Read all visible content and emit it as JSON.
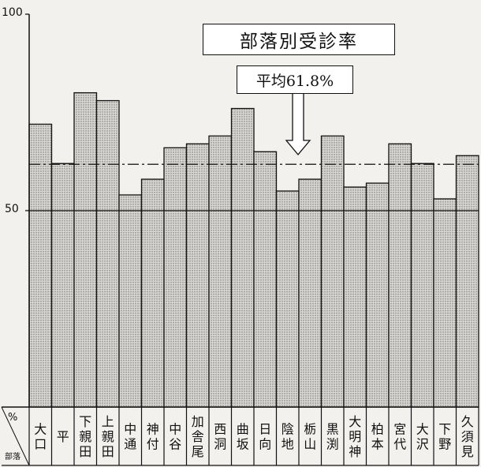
{
  "chart_data": {
    "type": "bar",
    "title": "部落別受診率",
    "annotation": "平均61.8%",
    "average": 61.8,
    "ylim": [
      0,
      100
    ],
    "yticks": [
      "100",
      "50"
    ],
    "unit_label": "%",
    "category_axis_label": "部落",
    "categories": [
      "大口",
      "平",
      "下親田",
      "上親田",
      "中通",
      "神付",
      "中谷",
      "加舎尾",
      "西洞",
      "曲坂",
      "日向",
      "陰地",
      "栃山",
      "黒渕",
      "大明神",
      "柏本",
      "宮代",
      "大沢",
      "下野",
      "久須見"
    ],
    "values": [
      72,
      62,
      80,
      78,
      54,
      58,
      66,
      67,
      69,
      76,
      65,
      55,
      58,
      69,
      56,
      57,
      67,
      62,
      53,
      64
    ],
    "grid": "horizontal line at 50",
    "bar_fill": "dotted gray",
    "colors": {
      "bar": "#c9c7c4",
      "ink": "#111111",
      "background": "#f3f1ee"
    }
  }
}
